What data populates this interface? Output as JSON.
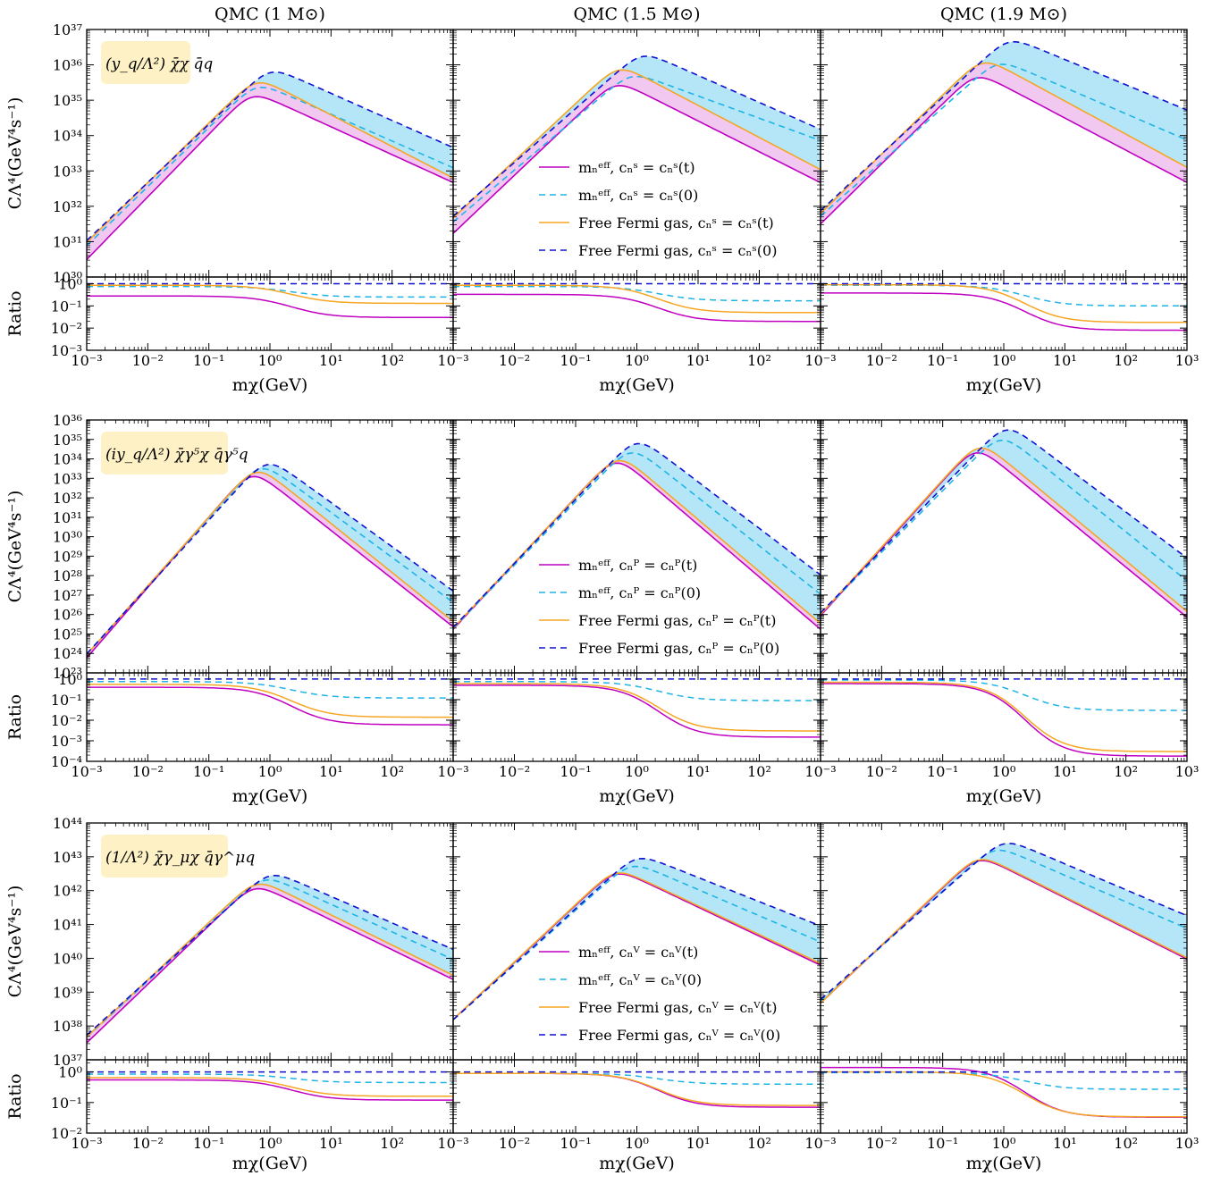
{
  "chart_data": {
    "type": "line",
    "xscale": "log",
    "yscale": "log",
    "xlim": [
      0.001,
      1000
    ],
    "xlabel": "mχ(GeV)",
    "ylabel_top": "CΛ⁴(GeV⁴s⁻¹)",
    "ylabel_ratio": "Ratio",
    "column_titles": [
      "QMC (1 M⊙)",
      "QMC (1.5 M⊙)",
      "QMC (1.9 M⊙)"
    ],
    "colors": {
      "meff_t": "#c000c0",
      "meff_0": "#1eb4e6",
      "fermi_t": "#f5a623",
      "fermi_0": "#1010d0",
      "fill_lower": "#f0c8f0",
      "fill_upper": "#b4e6f8",
      "operator_box": "#fdf1c5"
    },
    "rows": [
      {
        "operator": "(y_q/Λ²) χ̄χ q̄q",
        "ylim": [
          1e+30,
          1e+37
        ],
        "yticks": [
          "10³⁰",
          "10³¹",
          "10³²",
          "10³³",
          "10³⁴",
          "10³⁵",
          "10³⁶",
          "10³⁷"
        ],
        "ratio_ylim": [
          0.001,
          2
        ],
        "ratio_yticks": [
          "10⁻³",
          "10⁻²",
          "10⁻¹",
          "10⁰"
        ],
        "legend": [
          "mₙᵉᶠᶠ, cₙˢ = cₙˢ(t)",
          "mₙᵉᶠᶠ, cₙˢ = cₙˢ(0)",
          "Free Fermi gas, cₙˢ = cₙˢ(t)",
          "Free Fermi gas, cₙˢ = cₙˢ(0)"
        ],
        "panels": [
          {
            "series": [
              {
                "name": "mₙᵉᶠᶠ, cₙˢ = cₙˢ(t)",
                "peak_x": 0.5,
                "peak_y": 1.2e+35,
                "start_y": 2e+30,
                "end_y": 3e+32
              },
              {
                "name": "mₙᵉᶠᶠ, cₙˢ = cₙˢ(0)",
                "peak_x": 0.6,
                "peak_y": 2.2e+35,
                "start_y": 5e+30,
                "end_y": 8e+32
              },
              {
                "name": "Free Fermi gas, cₙˢ = cₙˢ(t)",
                "peak_x": 0.6,
                "peak_y": 3e+35,
                "start_y": 6e+30,
                "end_y": 4e+32
              },
              {
                "name": "Free Fermi gas, cₙˢ = cₙˢ(0)",
                "peak_x": 1.0,
                "peak_y": 6e+35,
                "start_y": 7e+30,
                "end_y": 3e+33
              }
            ],
            "ratios": {
              "meff_t": [
                0.28,
                0.03
              ],
              "meff_0": [
                0.75,
                0.25
              ],
              "fermi_t": [
                0.85,
                0.13
              ]
            }
          },
          {
            "series": [
              {
                "name": "mₙᵉᶠᶠ, cₙˢ = cₙˢ(t)",
                "peak_x": 0.45,
                "peak_y": 2.5e+35,
                "start_y": 1.1e+31,
                "end_y": 3e+32
              },
              {
                "name": "mₙᵉᶠᶠ, cₙˢ = cₙˢ(0)",
                "peak_x": 0.8,
                "peak_y": 4.5e+35,
                "start_y": 2.5e+31,
                "end_y": 5e+33
              },
              {
                "name": "Free Fermi gas, cₙˢ = cₙˢ(t)",
                "peak_x": 0.5,
                "peak_y": 7e+35,
                "start_y": 3e+31,
                "end_y": 7e+32
              },
              {
                "name": "Free Fermi gas, cₙˢ = cₙˢ(0)",
                "peak_x": 1.2,
                "peak_y": 1.7e+36,
                "start_y": 3.5e+31,
                "end_y": 1e+34
              }
            ],
            "ratios": {
              "meff_t": [
                0.33,
                0.02
              ],
              "meff_0": [
                0.75,
                0.17
              ],
              "fermi_t": [
                0.85,
                0.05
              ]
            }
          },
          {
            "series": [
              {
                "name": "mₙᵉᶠᶠ, cₙˢ = cₙˢ(t)",
                "peak_x": 0.35,
                "peak_y": 4.2e+35,
                "start_y": 2e+31,
                "end_y": 3e+32
              },
              {
                "name": "mₙᵉᶠᶠ, cₙˢ = cₙˢ(0)",
                "peak_x": 0.8,
                "peak_y": 1e+36,
                "start_y": 3.5e+31,
                "end_y": 5e+33
              },
              {
                "name": "Free Fermi gas, cₙˢ = cₙˢ(t)",
                "peak_x": 0.45,
                "peak_y": 1.1e+36,
                "start_y": 4e+31,
                "end_y": 8e+32
              },
              {
                "name": "Free Fermi gas, cₙˢ = cₙˢ(0)",
                "peak_x": 1.2,
                "peak_y": 4.3e+36,
                "start_y": 5e+31,
                "end_y": 3.5e+34
              }
            ],
            "ratios": {
              "meff_t": [
                0.38,
                0.008
              ],
              "meff_0": [
                0.85,
                0.1
              ],
              "fermi_t": [
                0.9,
                0.018
              ]
            }
          }
        ]
      },
      {
        "operator": "(iy_q/Λ²) χ̄γ⁵χ q̄γ⁵q",
        "ylim": [
          1e+23,
          1e+36
        ],
        "yticks": [
          "10²³",
          "10²⁴",
          "10²⁵",
          "10²⁶",
          "10²⁷",
          "10²⁸",
          "10²⁹",
          "10³⁰",
          "10³¹",
          "10³²",
          "10³³",
          "10³⁴",
          "10³⁵",
          "10³⁶"
        ],
        "ratio_ylim": [
          0.0001,
          2
        ],
        "ratio_yticks": [
          "10⁻⁴",
          "10⁻³",
          "10⁻²",
          "10⁻¹",
          "10⁰"
        ],
        "legend": [
          "mₙᵉᶠᶠ, cₙᴾ = cₙᴾ(t)",
          "mₙᵉᶠᶠ, cₙᴾ = cₙᴾ(0)",
          "Free Fermi gas, cₙᴾ = cₙᴾ(t)",
          "Free Fermi gas, cₙᴾ = cₙᴾ(0)"
        ],
        "panels": [
          {
            "series": [
              {
                "name": "mₙᵉᶠᶠ, cₙᴾ = cₙᴾ(t)",
                "peak_x": 0.5,
                "peak_y": 1.2e+33,
                "start_y": 2e+23,
                "end_y": 8e+24
              },
              {
                "name": "mₙᵉᶠᶠ, cₙᴾ = cₙᴾ(0)",
                "peak_x": 0.7,
                "peak_y": 3e+33,
                "start_y": 3e+23,
                "end_y": 1.5e+26
              },
              {
                "name": "Free Fermi gas, cₙᴾ = cₙᴾ(t)",
                "peak_x": 0.6,
                "peak_y": 2e+33,
                "start_y": 3e+23,
                "end_y": 1.5e+25
              },
              {
                "name": "Free Fermi gas, cₙᴾ = cₙᴾ(0)",
                "peak_x": 0.9,
                "peak_y": 5e+33,
                "start_y": 3.5e+23,
                "end_y": 6e+26
              }
            ],
            "ratios": {
              "meff_t": [
                0.4,
                0.006
              ],
              "meff_0": [
                0.75,
                0.12
              ],
              "fermi_t": [
                0.55,
                0.014
              ]
            }
          },
          {
            "series": [
              {
                "name": "mₙᵉᶠᶠ, cₙᴾ = cₙᴾ(t)",
                "peak_x": 0.45,
                "peak_y": 6e+33,
                "start_y": 6e+24,
                "end_y": 6e+24
              },
              {
                "name": "mₙᵉᶠᶠ, cₙᴾ = cₙᴾ(0)",
                "peak_x": 0.8,
                "peak_y": 2e+34,
                "start_y": 7e+24,
                "end_y": 4e+26
              },
              {
                "name": "Free Fermi gas, cₙᴾ = cₙᴾ(t)",
                "peak_x": 0.5,
                "peak_y": 8e+33,
                "start_y": 7e+24,
                "end_y": 1.2e+25
              },
              {
                "name": "Free Fermi gas, cₙᴾ = cₙᴾ(0)",
                "peak_x": 1.0,
                "peak_y": 6e+34,
                "start_y": 8e+24,
                "end_y": 4e+27
              }
            ],
            "ratios": {
              "meff_t": [
                0.5,
                0.0015
              ],
              "meff_0": [
                0.75,
                0.09
              ],
              "fermi_t": [
                0.6,
                0.003
              ]
            }
          },
          {
            "series": [
              {
                "name": "mₙᵉᶠᶠ, cₙᴾ = cₙᴾ(t)",
                "peak_x": 0.35,
                "peak_y": 2e+34,
                "start_y": 3e+25,
                "end_y": 2.5e+25
              },
              {
                "name": "mₙᵉᶠᶠ, cₙᴾ = cₙᴾ(0)",
                "peak_x": 0.9,
                "peak_y": 9e+34,
                "start_y": 4e+25,
                "end_y": 2e+27
              },
              {
                "name": "Free Fermi gas, cₙᴾ = cₙᴾ(t)",
                "peak_x": 0.4,
                "peak_y": 3.5e+34,
                "start_y": 3.5e+25,
                "end_y": 5e+25
              },
              {
                "name": "Free Fermi gas, cₙᴾ = cₙᴾ(0)",
                "peak_x": 1.1,
                "peak_y": 3e+35,
                "start_y": 4.5e+25,
                "end_y": 3e+28
              }
            ],
            "ratios": {
              "meff_t": [
                0.6,
                0.00018
              ],
              "meff_0": [
                0.9,
                0.03
              ],
              "fermi_t": [
                0.7,
                0.0003
              ]
            }
          }
        ]
      },
      {
        "operator": "(1/Λ²) χ̄γ_μχ q̄γ^μq",
        "ylim": [
          1e+37,
          1e+44
        ],
        "yticks": [
          "10³⁷",
          "10³⁸",
          "10³⁹",
          "10⁴⁰",
          "10⁴¹",
          "10⁴²",
          "10⁴³",
          "10⁴⁴"
        ],
        "ratio_ylim": [
          0.01,
          2.5
        ],
        "ratio_yticks": [
          "10⁻²",
          "10⁻¹",
          "10⁰"
        ],
        "legend": [
          "mₙᵉᶠᶠ, cₙⱽ = cₙⱽ(t)",
          "mₙᵉᶠᶠ, cₙⱽ = cₙⱽ(0)",
          "Free Fermi gas, cₙⱽ = cₙⱽ(t)",
          "Free Fermi gas, cₙⱽ = cₙⱽ(0)"
        ],
        "panels": [
          {
            "series": [
              {
                "name": "mₙᵉᶠᶠ, cₙⱽ = cₙⱽ(t)",
                "peak_x": 0.55,
                "peak_y": 1.1e+42,
                "start_y": 2e+37,
                "end_y": 1.5e+39
              },
              {
                "name": "mₙᵉᶠᶠ, cₙⱽ = cₙⱽ(0)",
                "peak_x": 0.8,
                "peak_y": 2e+42,
                "start_y": 3e+37,
                "end_y": 6e+39
              },
              {
                "name": "Free Fermi gas, cₙⱽ = cₙⱽ(t)",
                "peak_x": 0.6,
                "peak_y": 1.5e+42,
                "start_y": 3e+37,
                "end_y": 2e+39
              },
              {
                "name": "Free Fermi gas, cₙⱽ = cₙⱽ(0)",
                "peak_x": 1.0,
                "peak_y": 2.7e+42,
                "start_y": 3.5e+37,
                "end_y": 1.2e+40
              }
            ],
            "ratios": {
              "meff_t": [
                0.55,
                0.12
              ],
              "meff_0": [
                0.85,
                0.45
              ],
              "fermi_t": [
                0.65,
                0.16
              ]
            }
          },
          {
            "series": [
              {
                "name": "mₙᵉᶠᶠ, cₙⱽ = cₙⱽ(t)",
                "peak_x": 0.45,
                "peak_y": 3e+42,
                "start_y": 1e+38,
                "end_y": 4e+39
              },
              {
                "name": "mₙᵉᶠᶠ, cₙⱽ = cₙⱽ(0)",
                "peak_x": 0.8,
                "peak_y": 5e+42,
                "start_y": 1e+38,
                "end_y": 2e+40
              },
              {
                "name": "Free Fermi gas, cₙⱽ = cₙⱽ(t)",
                "peak_x": 0.45,
                "peak_y": 3.2e+42,
                "start_y": 1e+38,
                "end_y": 4.5e+39
              },
              {
                "name": "Free Fermi gas, cₙⱽ = cₙⱽ(0)",
                "peak_x": 1.0,
                "peak_y": 8.5e+42,
                "start_y": 1e+38,
                "end_y": 6e+40
              }
            ],
            "ratios": {
              "meff_t": [
                0.9,
                0.07
              ],
              "meff_0": [
                0.9,
                0.4
              ],
              "fermi_t": [
                0.9,
                0.08
              ]
            }
          },
          {
            "series": [
              {
                "name": "mₙᵉᶠᶠ, cₙⱽ = cₙⱽ(t)",
                "peak_x": 0.38,
                "peak_y": 7.5e+42,
                "start_y": 3e+38,
                "end_y": 6e+39
              },
              {
                "name": "mₙᵉᶠᶠ, cₙⱽ = cₙⱽ(0)",
                "peak_x": 0.7,
                "peak_y": 1.5e+43,
                "start_y": 3.5e+38,
                "end_y": 5e+40
              },
              {
                "name": "Free Fermi gas, cₙⱽ = cₙⱽ(t)",
                "peak_x": 0.38,
                "peak_y": 8e+42,
                "start_y": 3e+38,
                "end_y": 6.5e+39
              },
              {
                "name": "Free Fermi gas, cₙⱽ = cₙⱽ(0)",
                "peak_x": 1.0,
                "peak_y": 2.4e+43,
                "start_y": 4e+38,
                "end_y": 1.2e+41
              }
            ],
            "ratios": {
              "meff_t": [
                1.4,
                0.033
              ],
              "meff_0": [
                0.95,
                0.27
              ],
              "fermi_t": [
                1.0,
                0.034
              ]
            }
          }
        ]
      }
    ]
  }
}
